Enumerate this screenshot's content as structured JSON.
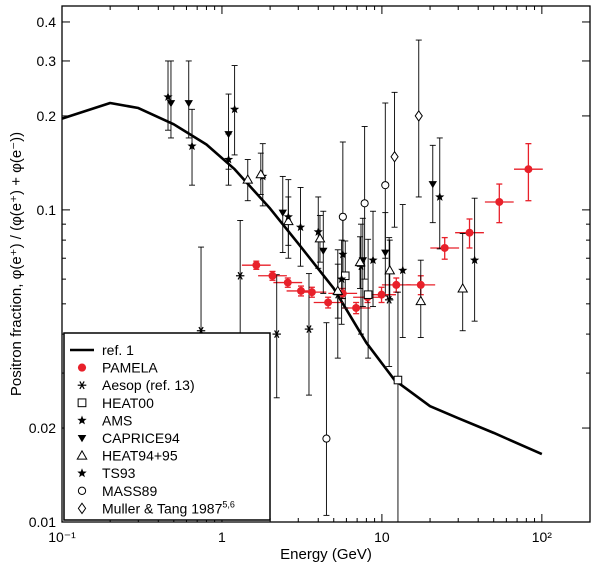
{
  "chart_data": {
    "type": "scatter",
    "title": "",
    "xlabel": "Energy (GeV)",
    "ylabel": "Positron fraction, φ(e⁺) / (φ(e⁺) + φ(e⁻))",
    "xscale": "log",
    "yscale": "log",
    "xlim": [
      0.1,
      200
    ],
    "ylim": [
      0.01,
      0.45
    ],
    "xticks": [
      {
        "value": 0.1,
        "label": "10⁻¹"
      },
      {
        "value": 1,
        "label": "1"
      },
      {
        "value": 10,
        "label": "10"
      },
      {
        "value": 100,
        "label": "10²"
      }
    ],
    "yticks": [
      {
        "value": 0.01,
        "label": "0.01"
      },
      {
        "value": 0.02,
        "label": "0.02"
      },
      {
        "value": 0.1,
        "label": "0.1"
      },
      {
        "value": 0.2,
        "label": "0.2"
      },
      {
        "value": 0.3,
        "label": "0.3"
      },
      {
        "value": 0.4,
        "label": "0.4"
      }
    ],
    "legend_position": "bottom-left",
    "series": [
      {
        "name": "ref. 1",
        "type": "line",
        "marker": "none",
        "color": "#000000",
        "x": [
          0.1,
          0.2,
          0.3,
          0.5,
          0.8,
          1.2,
          2,
          3,
          5,
          8,
          12,
          20,
          30,
          50,
          100
        ],
        "y": [
          0.196,
          0.22,
          0.212,
          0.188,
          0.162,
          0.135,
          0.101,
          0.078,
          0.056,
          0.0375,
          0.0285,
          0.0235,
          0.0215,
          0.0193,
          0.0165
        ]
      },
      {
        "name": "PAMELA",
        "type": "scatter",
        "marker": "filled-circle",
        "color": "#e8202a",
        "x": [
          1.64,
          2.07,
          2.58,
          3.12,
          3.65,
          4.61,
          5.69,
          6.9,
          8.13,
          9.95,
          12.3,
          17.5,
          24.7,
          35.3,
          54.2,
          82.4
        ],
        "y": [
          0.0665,
          0.0615,
          0.0585,
          0.055,
          0.0545,
          0.0505,
          0.054,
          0.0485,
          0.0525,
          0.0535,
          0.0575,
          0.0575,
          0.0755,
          0.0845,
          0.106,
          0.135
        ],
        "yerr": [
          0.002,
          0.002,
          0.002,
          0.002,
          0.002,
          0.002,
          0.002,
          0.002,
          0.002,
          0.003,
          0.003,
          0.004,
          0.006,
          0.009,
          0.015,
          0.028
        ]
      },
      {
        "name": "Aesop (ref. 13)",
        "type": "scatter",
        "marker": "asterisk",
        "color": "#000000",
        "x": [
          0.74,
          1.3,
          2.2,
          3.5,
          5.3,
          7.4,
          11.1
        ],
        "y": [
          0.041,
          0.0615,
          0.04,
          0.0415,
          0.0535,
          0.066,
          0.0515
        ],
        "yerr_low": [
          0.021,
          0.026,
          0.015,
          0.016,
          0.02,
          0.026,
          0.02
        ],
        "yerr_high": [
          0.035,
          0.031,
          0.022,
          0.021,
          0.021,
          0.024,
          0.03
        ]
      },
      {
        "name": "HEAT00",
        "type": "scatter",
        "marker": "open-square",
        "color": "#000000",
        "x": [
          5.9,
          8.2,
          12.6
        ],
        "y": [
          0.0615,
          0.0535,
          0.0285
        ],
        "yerr_low": [
          0.013,
          0.02,
          0.022
        ],
        "yerr_high": [
          0.018,
          0.027,
          0.026
        ]
      },
      {
        "name": "AMS",
        "type": "scatter",
        "marker": "star",
        "color": "#000000",
        "x": [
          1.1,
          1.8,
          3.1,
          5.6
        ],
        "y": [
          0.145,
          0.128,
          0.088,
          0.06
        ],
        "yerr_low": [
          0.025,
          0.025,
          0.022,
          0.017
        ],
        "yerr_high": [
          0.03,
          0.035,
          0.03,
          0.02
        ]
      },
      {
        "name": "CAPRICE94",
        "type": "scatter",
        "marker": "filled-triangle-down",
        "color": "#000000",
        "x": [
          0.48,
          0.62,
          1.1,
          2.4,
          4.3,
          7.6,
          10.5,
          20.8
        ],
        "y": [
          0.22,
          0.22,
          0.175,
          0.098,
          0.074,
          0.069,
          0.073,
          0.121
        ],
        "yerr_low": [
          0.05,
          0.05,
          0.04,
          0.025,
          0.02,
          0.02,
          0.02,
          0.03
        ],
        "yerr_high": [
          0.08,
          0.08,
          0.06,
          0.03,
          0.025,
          0.025,
          0.025,
          0.04
        ]
      },
      {
        "name": "HEAT94+95",
        "type": "scatter",
        "marker": "open-triangle",
        "color": "#000000",
        "x": [
          1.45,
          1.75,
          2.6,
          4.1,
          5.3,
          7.3,
          11.2,
          17.5,
          32.0
        ],
        "y": [
          0.125,
          0.13,
          0.092,
          0.081,
          0.055,
          0.068,
          0.064,
          0.051,
          0.056
        ],
        "yerr_low": [
          0.018,
          0.018,
          0.015,
          0.013,
          0.01,
          0.012,
          0.012,
          0.012,
          0.015
        ],
        "yerr_high": [
          0.02,
          0.022,
          0.018,
          0.015,
          0.012,
          0.014,
          0.016,
          0.018,
          0.028
        ]
      },
      {
        "name": "TS93",
        "type": "scatter",
        "marker": "star",
        "color": "#000000",
        "x": [
          0.46,
          0.65,
          1.2,
          2.6,
          4.0,
          5.7,
          8.8,
          13.5,
          23.0,
          38.0
        ],
        "y": [
          0.23,
          0.16,
          0.21,
          0.095,
          0.085,
          0.072,
          0.069,
          0.064,
          0.11,
          0.069
        ],
        "yerr_low": [
          0.05,
          0.04,
          0.06,
          0.025,
          0.02,
          0.02,
          0.02,
          0.025,
          0.035,
          0.025
        ],
        "yerr_high": [
          0.07,
          0.05,
          0.08,
          0.03,
          0.025,
          0.025,
          0.03,
          0.04,
          0.06,
          0.04
        ]
      },
      {
        "name": "MASS89",
        "type": "scatter",
        "marker": "open-circle",
        "color": "#000000",
        "x": [
          4.5,
          5.7,
          7.8,
          10.5
        ],
        "y": [
          0.0185,
          0.095,
          0.105,
          0.12
        ],
        "yerr_low": [
          0.008,
          0.035,
          0.045,
          0.05
        ],
        "yerr_high": [
          0.025,
          0.07,
          0.08,
          0.1
        ]
      },
      {
        "name": "Muller & Tang 1987",
        "name_sup": "5,6",
        "type": "scatter",
        "marker": "open-diamond",
        "color": "#000000",
        "x": [
          12.0,
          17.0
        ],
        "y": [
          0.148,
          0.2
        ],
        "yerr_low": [
          0.06,
          0.09
        ],
        "yerr_high": [
          0.09,
          0.15
        ]
      }
    ]
  }
}
